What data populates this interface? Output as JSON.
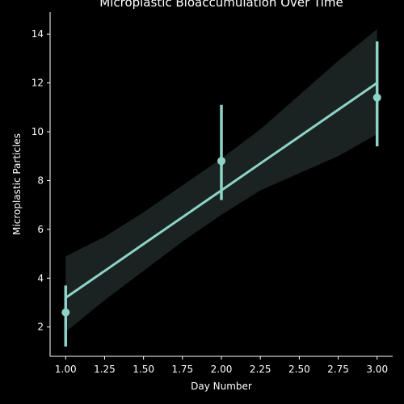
{
  "chart_data": {
    "type": "scatter",
    "title": "Microplastic Bioaccumulation Over Time",
    "xlabel": "Day Number",
    "ylabel": "Microplastic Particles",
    "xlim": [
      0.9,
      3.1
    ],
    "ylim": [
      0.8,
      14.9
    ],
    "x_ticks": [
      "1.00",
      "1.25",
      "1.50",
      "1.75",
      "2.00",
      "2.25",
      "2.50",
      "2.75",
      "3.00"
    ],
    "y_ticks": [
      "2",
      "4",
      "6",
      "8",
      "10",
      "12",
      "14"
    ],
    "grid": false,
    "points": [
      {
        "x": 1,
        "y": 2.6,
        "ci_low": 1.2,
        "ci_high": 3.7
      },
      {
        "x": 2,
        "y": 8.8,
        "ci_low": 7.2,
        "ci_high": 11.1
      },
      {
        "x": 3,
        "y": 11.4,
        "ci_low": 9.4,
        "ci_high": 13.7
      }
    ],
    "regression": {
      "x": [
        1.0,
        1.25,
        1.5,
        1.75,
        2.0,
        2.25,
        2.5,
        2.75,
        3.0
      ],
      "y": [
        3.2,
        4.3,
        5.4,
        6.5,
        7.6,
        8.7,
        9.8,
        10.9,
        12.0
      ],
      "ci_low": [
        1.8,
        3.1,
        4.3,
        5.5,
        6.6,
        7.6,
        8.3,
        9.0,
        9.9
      ],
      "ci_high": [
        4.9,
        5.7,
        6.7,
        7.8,
        8.9,
        10.1,
        11.5,
        12.9,
        14.2
      ]
    },
    "colors": {
      "background": "#000000",
      "series": "#8dd3c7",
      "band": "#1a2321",
      "axis": "#ffffff"
    }
  }
}
